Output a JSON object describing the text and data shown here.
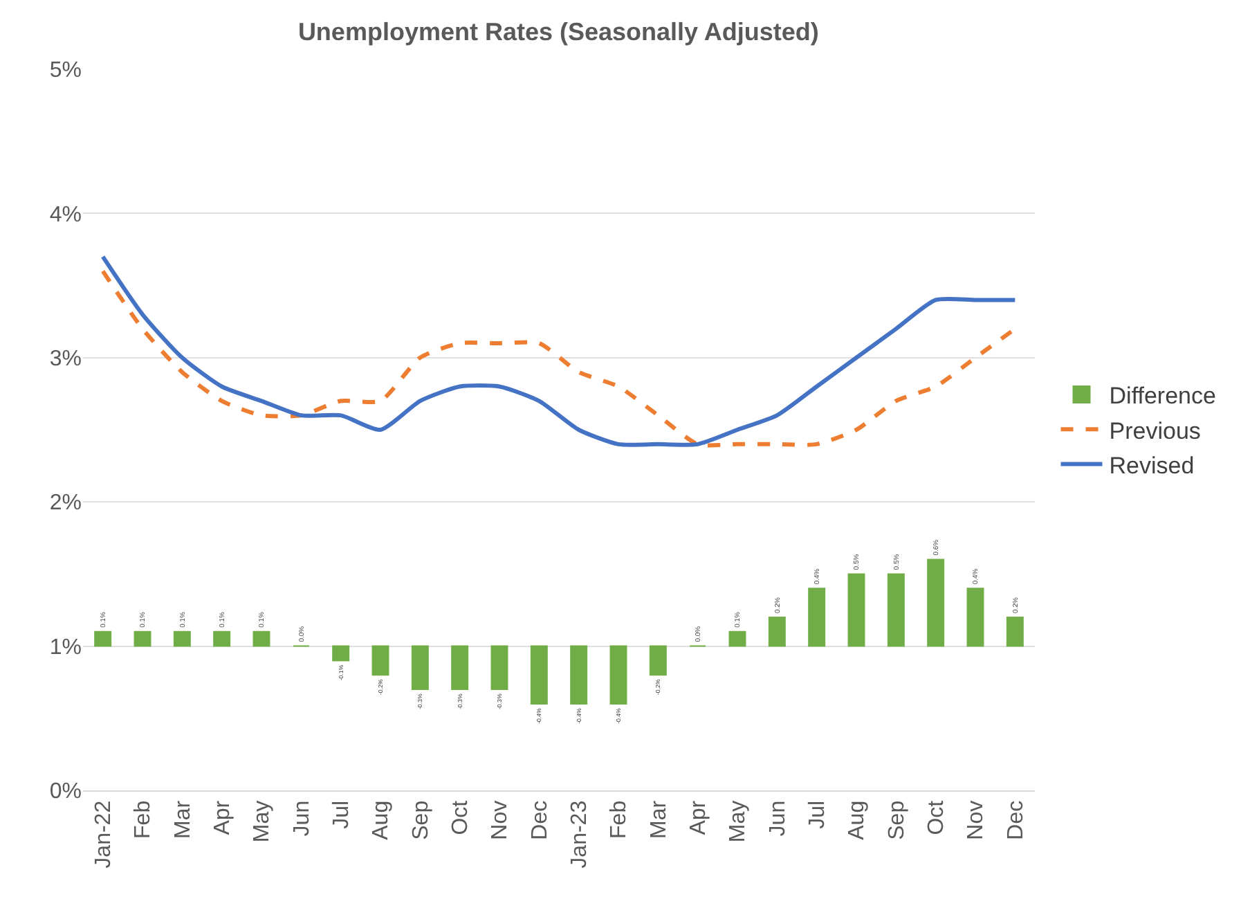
{
  "chart_data": {
    "type": "line",
    "title": "Unemployment Rates (Seasonally Adjusted)",
    "categories": [
      "Jan-22",
      "Feb",
      "Mar",
      "Apr",
      "May",
      "Jun",
      "Jul",
      "Aug",
      "Sep",
      "Oct",
      "Nov",
      "Dec",
      "Jan-23",
      "Feb",
      "Mar",
      "Apr",
      "May",
      "Jun",
      "Jul",
      "Aug",
      "Sep",
      "Oct",
      "Nov",
      "Dec"
    ],
    "series": [
      {
        "name": "Difference",
        "type": "bar",
        "color": "#70ad47",
        "base": [
          1,
          1,
          1,
          1,
          1,
          1,
          1,
          1,
          1,
          1,
          1,
          1,
          1,
          1,
          1,
          1,
          1,
          1,
          1,
          1,
          1,
          1,
          1,
          1
        ],
        "values": [
          0.1,
          0.1,
          0.1,
          0.1,
          0.1,
          0.0,
          -0.1,
          -0.2,
          -0.3,
          -0.3,
          -0.3,
          -0.4,
          -0.4,
          -0.4,
          -0.2,
          0.0,
          0.1,
          0.2,
          0.4,
          0.5,
          0.5,
          0.6,
          0.4,
          0.2
        ],
        "value_labels": [
          "0.1%",
          "0.1%",
          "0.1%",
          "0.1%",
          "0.1%",
          "0.0%",
          "-0.1%",
          "-0.2%",
          "-0.3%",
          "-0.3%",
          "-0.3%",
          "-0.4%",
          "-0.4%",
          "-0.4%",
          "-0.2%",
          "0.0%",
          "0.1%",
          "0.2%",
          "0.4%",
          "0.5%",
          "0.5%",
          "0.6%",
          "0.4%",
          "0.2%"
        ]
      },
      {
        "name": "Previous",
        "color": "#ed7d31",
        "line_style": "dashed",
        "values": [
          3.6,
          3.2,
          2.9,
          2.7,
          2.6,
          2.6,
          2.7,
          2.7,
          3.0,
          3.1,
          3.1,
          3.1,
          2.9,
          2.8,
          2.6,
          2.4,
          2.4,
          2.4,
          2.4,
          2.5,
          2.7,
          2.8,
          3.0,
          3.2
        ]
      },
      {
        "name": "Revised",
        "color": "#4472c4",
        "line_style": "solid",
        "values": [
          3.7,
          3.3,
          3.0,
          2.8,
          2.7,
          2.6,
          2.6,
          2.5,
          2.7,
          2.8,
          2.8,
          2.7,
          2.5,
          2.4,
          2.4,
          2.4,
          2.5,
          2.6,
          2.8,
          3.0,
          3.2,
          3.4,
          3.4,
          3.4
        ]
      }
    ],
    "ylim": [
      0,
      5
    ],
    "yticks": [
      {
        "value": 0,
        "label": "0%"
      },
      {
        "value": 1,
        "label": "1%"
      },
      {
        "value": 2,
        "label": "2%"
      },
      {
        "value": 3,
        "label": "3%"
      },
      {
        "value": 4,
        "label": "4%"
      },
      {
        "value": 5,
        "label": "5%"
      }
    ],
    "grid": "y",
    "legend": "right",
    "marker": "none"
  }
}
